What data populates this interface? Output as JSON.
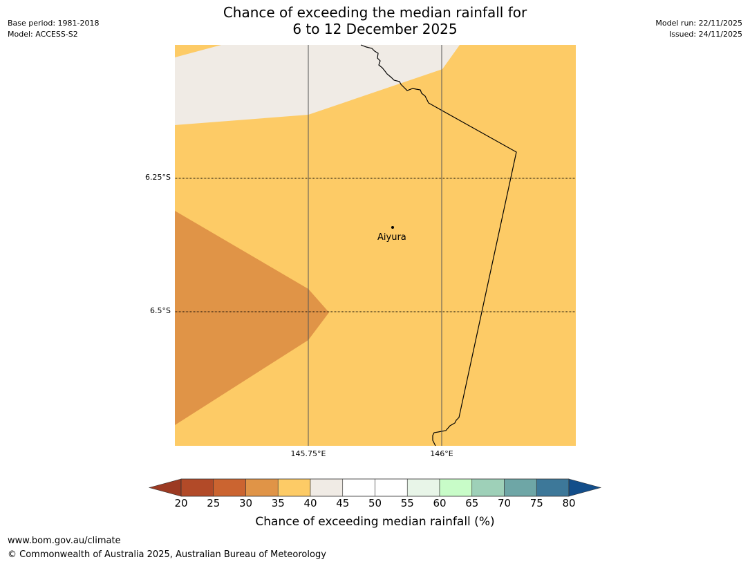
{
  "header": {
    "title_line1": "Chance of exceeding the median rainfall for",
    "title_line2": "6 to 12 December 2025",
    "base_period": "Base period: 1981-2018",
    "model": "Model: ACCESS-S2",
    "model_run": "Model run: 22/11/2025",
    "issued": "Issued: 24/11/2025"
  },
  "map": {
    "lat_labels": [
      "6.25°S",
      "6.5°S"
    ],
    "lon_labels": [
      "145.75°E",
      "146°E"
    ],
    "place": "Aiyura",
    "colors": {
      "band_35_40": "#fdcb66",
      "band_30_35": "#e09447",
      "band_40_45": "#f0ebe5",
      "border": "#000000",
      "gridline": "#555555"
    }
  },
  "colorbar": {
    "ticks": [
      "20",
      "25",
      "30",
      "35",
      "40",
      "45",
      "50",
      "55",
      "60",
      "65",
      "70",
      "75",
      "80"
    ],
    "low_extend_color": "#9c3a22",
    "high_extend_color": "#134e8a",
    "colors": [
      "#b24a28",
      "#cb6430",
      "#e09447",
      "#fdcb66",
      "#f0ebe5",
      "#ffffff",
      "#ffffff",
      "#e8f5e8",
      "#c8fcc8",
      "#9ed0b8",
      "#6ea6a6",
      "#3d7899"
    ],
    "label": "Chance of exceeding median rainfall (%)"
  },
  "footer": {
    "url": "www.bom.gov.au/climate",
    "copyright": "© Commonwealth of Australia 2025, Australian Bureau of Meteorology"
  }
}
